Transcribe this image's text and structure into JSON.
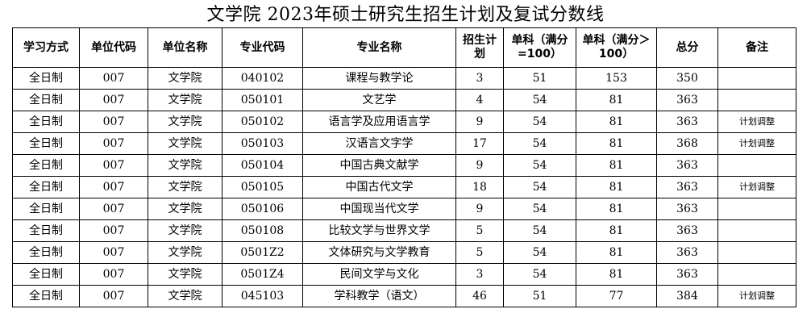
{
  "title": "文学院  2023年硕士研究生招生计划及复试分数线",
  "columns": [
    "学习方式",
    "单位代码",
    "单位名称",
    "专业代码",
    "专业名称",
    "招生计划",
    "单科（满分=100）",
    "单科（满分＞100）",
    "总分",
    "备注"
  ],
  "rows": [
    [
      "全日制",
      "007",
      "文学院",
      "040102",
      "课程与教学论",
      "3",
      "51",
      "153",
      "350",
      ""
    ],
    [
      "全日制",
      "007",
      "文学院",
      "050101",
      "文艺学",
      "4",
      "54",
      "81",
      "363",
      ""
    ],
    [
      "全日制",
      "007",
      "文学院",
      "050102",
      "语言学及应用语言学",
      "9",
      "54",
      "81",
      "363",
      "计划调整"
    ],
    [
      "全日制",
      "007",
      "文学院",
      "050103",
      "汉语言文字学",
      "17",
      "54",
      "81",
      "368",
      "计划调整"
    ],
    [
      "全日制",
      "007",
      "文学院",
      "050104",
      "中国古典文献学",
      "9",
      "54",
      "81",
      "363",
      ""
    ],
    [
      "全日制",
      "007",
      "文学院",
      "050105",
      "中国古代文学",
      "18",
      "54",
      "81",
      "363",
      "计划调整"
    ],
    [
      "全日制",
      "007",
      "文学院",
      "050106",
      "中国现当代文学",
      "9",
      "54",
      "81",
      "363",
      ""
    ],
    [
      "全日制",
      "007",
      "文学院",
      "050108",
      "比较文学与世界文学",
      "5",
      "54",
      "81",
      "363",
      ""
    ],
    [
      "全日制",
      "007",
      "文学院",
      "0501Z2",
      "文体研究与文学教育",
      "5",
      "54",
      "81",
      "363",
      ""
    ],
    [
      "全日制",
      "007",
      "文学院",
      "0501Z4",
      "民间文学与文化",
      "3",
      "54",
      "81",
      "363",
      ""
    ],
    [
      "全日制",
      "007",
      "文学院",
      "045103",
      "学科教学（语文）",
      "46",
      "51",
      "77",
      "384",
      "计划调整"
    ]
  ]
}
